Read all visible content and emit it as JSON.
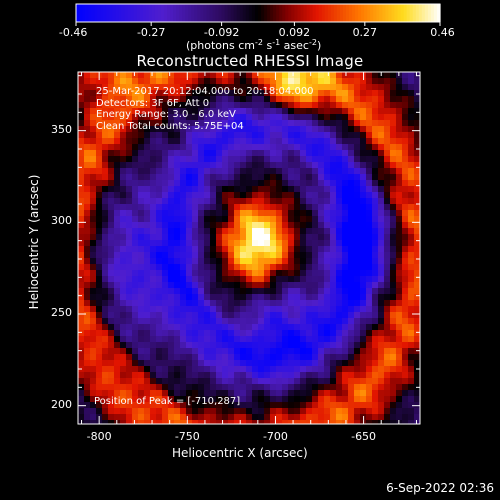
{
  "chart_data": {
    "type": "heatmap",
    "title": "Reconstructed RHESSI Image",
    "xlabel": "Heliocentric X (arcsec)",
    "ylabel": "Heliocentric Y (arcsec)",
    "xlim": [
      -812,
      -618
    ],
    "ylim": [
      190,
      382
    ],
    "x_ticks": [
      -800,
      -750,
      -700,
      -650
    ],
    "y_ticks": [
      200,
      250,
      300,
      350
    ],
    "colorbar": {
      "min": -0.46,
      "max": 0.46,
      "ticks": [
        -0.46,
        -0.27,
        -0.092,
        0.092,
        0.27,
        0.46
      ],
      "tick_labels": [
        "-0.46",
        "-0.27",
        "-0.092",
        "0.092",
        "0.27",
        "0.46"
      ],
      "unit_base": "(photons cm",
      "unit_exp1": "-2",
      "unit_mid": " s",
      "unit_exp2": "-1",
      "unit_mid2": " asec",
      "unit_exp3": "-2",
      "unit_end": ")"
    },
    "info_lines": [
      "25-Mar-2017 20:12:04.000 to 20:18:04.000",
      "Detectors: 3F 6F, Att 0",
      "Energy Range: 3.0 - 6.0 keV",
      "Clean     Total counts: 5.75E+04"
    ],
    "peak_label": "Position of Peak = [-710,287]",
    "peak": {
      "x": -710,
      "y": 287,
      "value": 0.46
    },
    "features": [
      {
        "kind": "blob",
        "x": -710,
        "y": 289,
        "sx": 14,
        "sy": 17,
        "amp": 0.56
      },
      {
        "kind": "blob",
        "x": -690,
        "y": 372,
        "sx": 13,
        "sy": 11,
        "amp": 0.33
      },
      {
        "kind": "blob",
        "x": -805,
        "y": 384,
        "sx": 18,
        "sy": 10,
        "amp": 0.22
      },
      {
        "kind": "ring",
        "x": -718,
        "y": 286,
        "rx": 98,
        "ry": 108,
        "w": 12,
        "amp": 0.3
      },
      {
        "kind": "ring",
        "x": -705,
        "y": 289,
        "rx": 52,
        "ry": 64,
        "w": 8,
        "amp": -0.26
      },
      {
        "kind": "blob",
        "x": -698,
        "y": 248,
        "sx": 14,
        "sy": 15,
        "amp": -0.22
      },
      {
        "kind": "blob",
        "x": -650,
        "y": 290,
        "sx": 14,
        "sy": 26,
        "amp": -0.26
      },
      {
        "kind": "blob",
        "x": -780,
        "y": 275,
        "sx": 18,
        "sy": 30,
        "amp": -0.2
      }
    ],
    "colormap": "blue-purple-black-red-yellow-white"
  },
  "footer_date": "6-Sep-2022 02:36"
}
